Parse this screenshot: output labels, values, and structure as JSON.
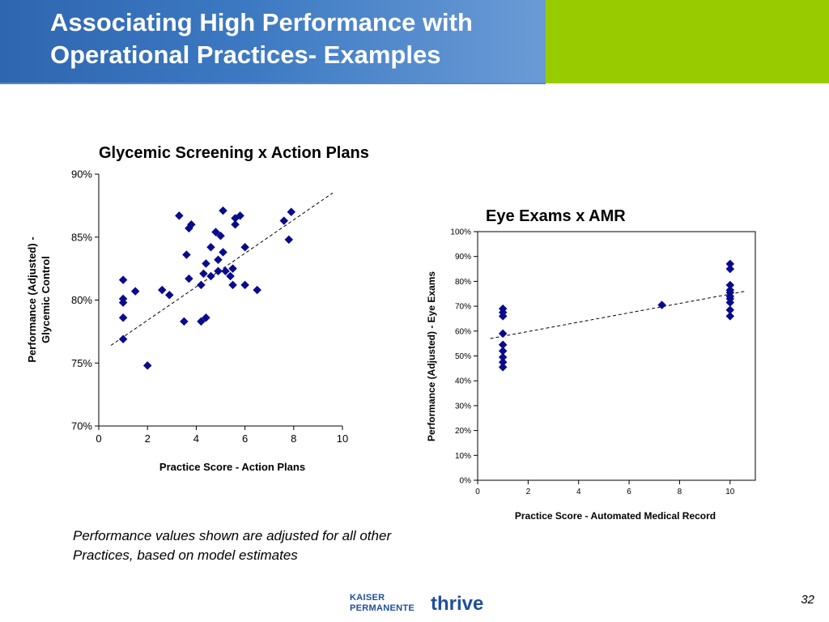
{
  "slide": {
    "title_line1": "Associating High Performance with",
    "title_line2": "Operational Practices- Examples",
    "note": "Performance values shown are adjusted for all other Practices, based on model estimates",
    "page_number": "32",
    "logo_text_line1": "KAISER",
    "logo_text_line2": "PERMANENTE",
    "logo_text_thrive": "thrive"
  },
  "colors": {
    "header_blue": "#3c79c2",
    "header_green": "#99cc00",
    "marker": "#0a0a8c"
  },
  "chart_data": [
    {
      "type": "scatter",
      "title": "Glycemic Screening x Action Plans",
      "xlabel": "Practice Score - Action Plans",
      "ylabel_line1": "Performance (Adjusted) -",
      "ylabel_line2": "Glycemic Control",
      "xlim": [
        0,
        10
      ],
      "ylim": [
        70,
        90
      ],
      "x_ticks": [
        0,
        2,
        4,
        6,
        8,
        10
      ],
      "y_ticks": [
        70,
        75,
        80,
        85,
        90
      ],
      "y_tick_labels": [
        "70%",
        "75%",
        "80%",
        "85%",
        "90%"
      ],
      "grid": false,
      "points": [
        {
          "x": 1.0,
          "y": 81.6
        },
        {
          "x": 1.0,
          "y": 80.1
        },
        {
          "x": 1.0,
          "y": 79.8
        },
        {
          "x": 1.0,
          "y": 78.6
        },
        {
          "x": 1.0,
          "y": 76.9
        },
        {
          "x": 1.5,
          "y": 80.7
        },
        {
          "x": 2.0,
          "y": 74.8
        },
        {
          "x": 2.6,
          "y": 80.8
        },
        {
          "x": 2.9,
          "y": 80.4
        },
        {
          "x": 3.3,
          "y": 86.7
        },
        {
          "x": 3.5,
          "y": 78.3
        },
        {
          "x": 3.6,
          "y": 83.6
        },
        {
          "x": 3.7,
          "y": 81.7
        },
        {
          "x": 3.7,
          "y": 85.7
        },
        {
          "x": 3.8,
          "y": 86.0
        },
        {
          "x": 4.2,
          "y": 81.2
        },
        {
          "x": 4.2,
          "y": 78.3
        },
        {
          "x": 4.3,
          "y": 82.1
        },
        {
          "x": 4.4,
          "y": 82.9
        },
        {
          "x": 4.4,
          "y": 78.6
        },
        {
          "x": 4.6,
          "y": 81.9
        },
        {
          "x": 4.6,
          "y": 84.2
        },
        {
          "x": 4.8,
          "y": 85.4
        },
        {
          "x": 4.9,
          "y": 82.3
        },
        {
          "x": 4.9,
          "y": 83.2
        },
        {
          "x": 5.0,
          "y": 85.1
        },
        {
          "x": 5.1,
          "y": 87.1
        },
        {
          "x": 5.1,
          "y": 83.8
        },
        {
          "x": 5.2,
          "y": 82.3
        },
        {
          "x": 5.4,
          "y": 81.9
        },
        {
          "x": 5.5,
          "y": 82.5
        },
        {
          "x": 5.5,
          "y": 81.2
        },
        {
          "x": 5.6,
          "y": 86.5
        },
        {
          "x": 5.6,
          "y": 86.0
        },
        {
          "x": 5.8,
          "y": 86.7
        },
        {
          "x": 6.0,
          "y": 84.2
        },
        {
          "x": 6.0,
          "y": 81.2
        },
        {
          "x": 6.5,
          "y": 80.8
        },
        {
          "x": 7.6,
          "y": 86.3
        },
        {
          "x": 7.8,
          "y": 84.8
        },
        {
          "x": 7.9,
          "y": 87.0
        }
      ],
      "trendline": {
        "x0": 0.5,
        "y0": 76.4,
        "x1": 9.6,
        "y1": 88.5
      }
    },
    {
      "type": "scatter",
      "title": "Eye Exams x AMR",
      "xlabel": "Practice Score - Automated Medical Record",
      "ylabel": "Performance (Adjusted) - Eye Exams",
      "xlim": [
        0,
        11
      ],
      "ylim": [
        0,
        100
      ],
      "x_ticks": [
        0,
        2,
        4,
        6,
        8,
        10
      ],
      "y_ticks": [
        0,
        10,
        20,
        30,
        40,
        50,
        60,
        70,
        80,
        90,
        100
      ],
      "y_tick_labels": [
        "0%",
        "10%",
        "20%",
        "30%",
        "40%",
        "50%",
        "60%",
        "70%",
        "80%",
        "90%",
        "100%"
      ],
      "grid": false,
      "points": [
        {
          "x": 1,
          "y": 69
        },
        {
          "x": 1,
          "y": 67.5
        },
        {
          "x": 1,
          "y": 66
        },
        {
          "x": 1,
          "y": 59
        },
        {
          "x": 1,
          "y": 54.5
        },
        {
          "x": 1,
          "y": 52
        },
        {
          "x": 1,
          "y": 49.5
        },
        {
          "x": 1,
          "y": 47.5
        },
        {
          "x": 1,
          "y": 45.5
        },
        {
          "x": 7.3,
          "y": 70.5
        },
        {
          "x": 10,
          "y": 87
        },
        {
          "x": 10,
          "y": 85
        },
        {
          "x": 10,
          "y": 78.5
        },
        {
          "x": 10,
          "y": 76.5
        },
        {
          "x": 10,
          "y": 75.5
        },
        {
          "x": 10,
          "y": 74
        },
        {
          "x": 10,
          "y": 73
        },
        {
          "x": 10,
          "y": 71.5
        },
        {
          "x": 10,
          "y": 68.5
        },
        {
          "x": 10,
          "y": 66
        }
      ],
      "trendline": {
        "x0": 0.5,
        "y0": 57,
        "x1": 10.6,
        "y1": 76
      }
    }
  ]
}
